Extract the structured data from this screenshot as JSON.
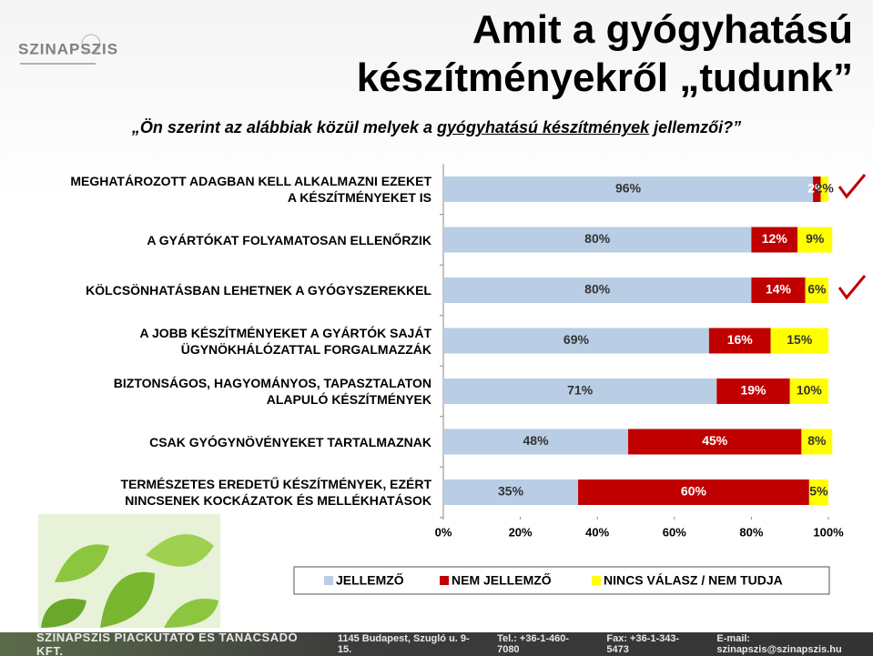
{
  "logo": "SZINAPSZIS",
  "title": "Amit a gyógyhatású\nkészítményekről „tudunk”",
  "question": [
    "„Ön szerint az alábbiak közül melyek a ",
    "gyógyhatású készítmények",
    " jellemzői?”"
  ],
  "chart_data": {
    "type": "stacked-bar-horizontal",
    "categories": [
      "MEGHATÁROZOTT ADAGBAN KELL ALKALMAZNI EZEKET\nA KÉSZÍTMÉNYEKET IS",
      "A GYÁRTÓKAT FOLYAMATOSAN ELLENŐRZIK",
      "KÖLCSÖNHATÁSBAN LEHETNEK A GYÓGYSZEREKKEL",
      "A JOBB KÉSZÍTMÉNYEKET A GYÁRTÓK SAJÁT\nÜGYNÖKHÁLÓZATTAL FORGALMAZZÁK",
      "BIZTONSÁGOS, HAGYOMÁNYOS, TAPASZTALATON\nALAPULÓ KÉSZÍTMÉNYEK",
      "CSAK GYÓGYNÖVÉNYEKET TARTALMAZNAK",
      "TERMÉSZETES EREDETŰ KÉSZÍTMÉNYEK, EZÉRT\nNINCSENEK KOCKÁZATOK ÉS MELLÉKHATÁSOK"
    ],
    "series": [
      {
        "name": "JELLEMZŐ",
        "color": "#b9cde5",
        "values": [
          96,
          80,
          80,
          69,
          71,
          48,
          35
        ],
        "value_labels": [
          "96%",
          "80%",
          "80%",
          "69%",
          "71%",
          "48%",
          "35%"
        ]
      },
      {
        "name": "NEM JELLEMZŐ",
        "color": "#c00000",
        "values": [
          2,
          12,
          14,
          16,
          19,
          45,
          60
        ],
        "value_labels": [
          "2%",
          "12%",
          "14%",
          "16%",
          "19%",
          "45%",
          "60%"
        ]
      },
      {
        "name": "NINCS VÁLASZ / NEM TUDJA",
        "color": "#ffff00",
        "values": [
          2,
          9,
          6,
          15,
          10,
          8,
          5
        ],
        "value_labels": [
          "2%",
          "9%",
          "6%",
          "15%",
          "10%",
          "8%",
          "5%"
        ]
      }
    ],
    "xlim": [
      0,
      100
    ],
    "xticks": [
      {
        "value": 0,
        "label": "0%"
      },
      {
        "value": 20,
        "label": "20%"
      },
      {
        "value": 40,
        "label": "40%"
      },
      {
        "value": 60,
        "label": "60%"
      },
      {
        "value": 80,
        "label": "80%"
      },
      {
        "value": 100,
        "label": "100%"
      }
    ],
    "legend": "bottom"
  },
  "footer": [
    "SZINAPSZIS PIACKUTATÓ ÉS TANÁCSADÓ KFT.",
    "1145 Budapest, Szugló u. 9-15.",
    "Tel.: +36-1-460-7080",
    "Fax: +36-1-343-5473",
    "E-mail: szinapszis@szinapszis.hu"
  ]
}
